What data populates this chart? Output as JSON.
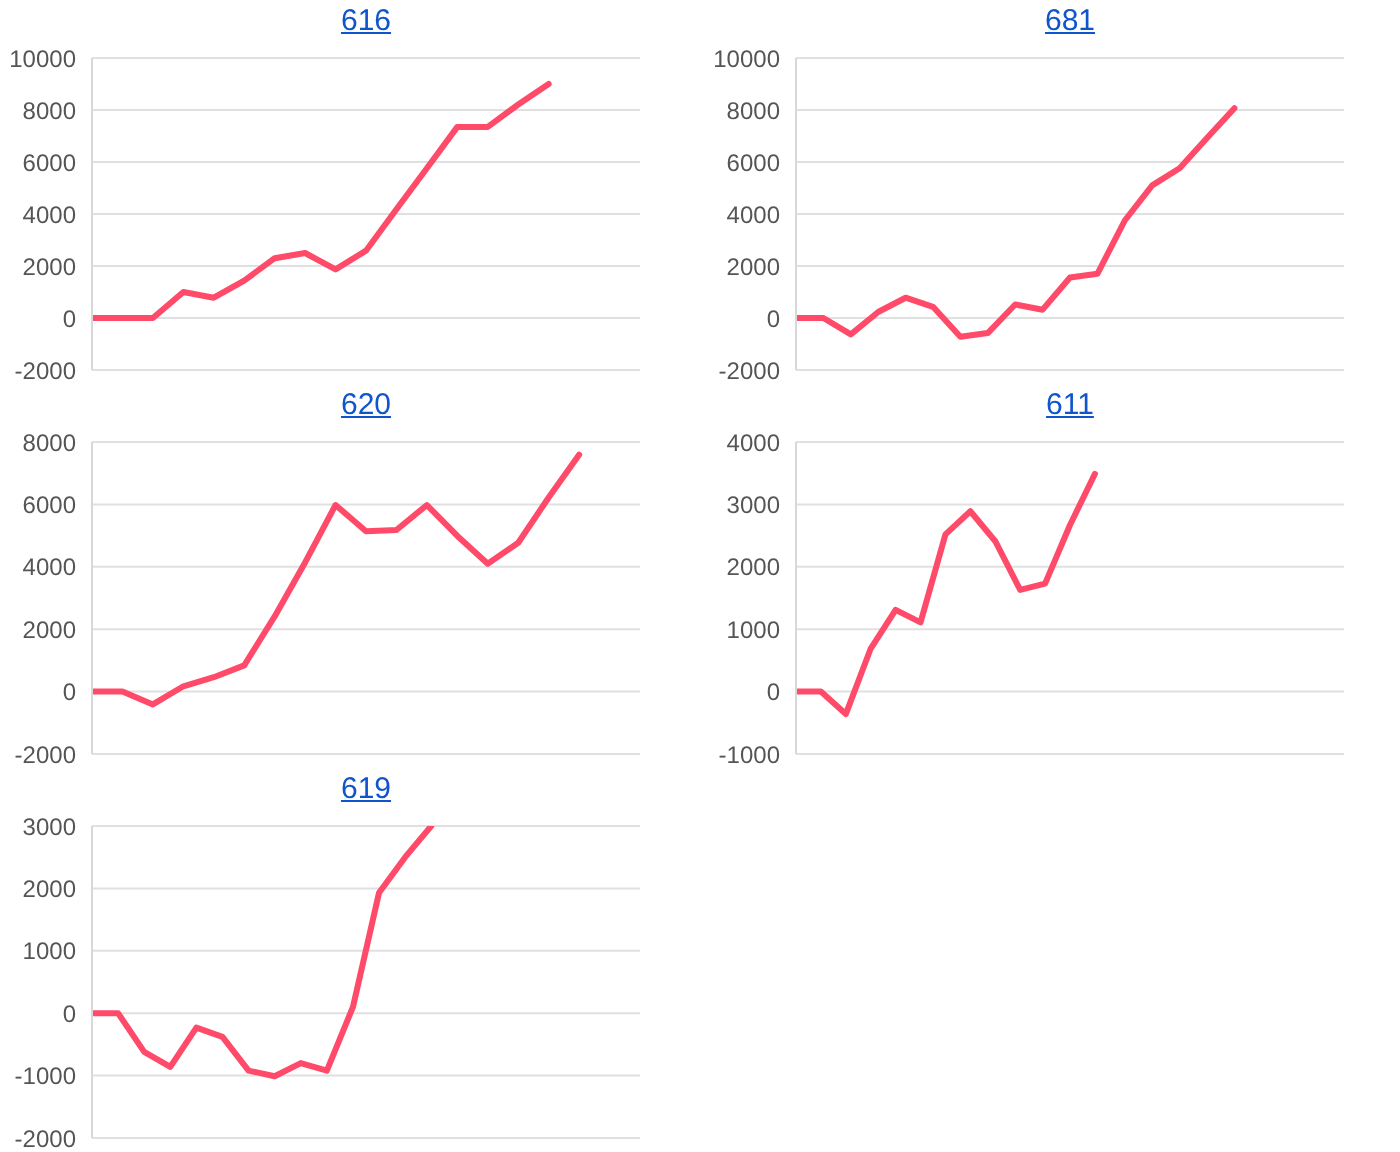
{
  "chart_data": [
    {
      "type": "line",
      "title": "616",
      "categories": [
        null,
        null,
        null,
        null,
        null,
        null,
        null,
        null,
        null,
        null,
        null,
        null,
        null,
        null,
        null,
        null,
        null,
        null,
        null
      ],
      "series": [
        {
          "color": "#ff4a6a",
          "values": [
            0,
            0,
            0,
            1000,
            780,
            1440,
            2300,
            2500,
            1870,
            2590,
            4180,
            5760,
            7350,
            7350,
            8210,
            9000,
            null,
            null,
            null
          ]
        }
      ],
      "ylim": [
        -2000,
        10000
      ],
      "yticks": [
        -2000,
        0,
        2000,
        4000,
        6000,
        8000,
        10000
      ],
      "grid": "y",
      "tick_labels": "y"
    },
    {
      "type": "line",
      "title": "681",
      "categories": [
        null,
        null,
        null,
        null,
        null,
        null,
        null,
        null,
        null,
        null,
        null,
        null,
        null,
        null,
        null,
        null,
        null,
        null,
        null,
        null,
        null
      ],
      "series": [
        {
          "color": "#ff4a6a",
          "values": [
            0,
            0,
            -630,
            230,
            780,
            430,
            -720,
            -580,
            520,
            320,
            1560,
            1700,
            3750,
            5100,
            5760,
            6920,
            8070,
            null,
            null,
            null,
            null
          ]
        }
      ],
      "ylim": [
        -2000,
        10000
      ],
      "yticks": [
        -2000,
        0,
        2000,
        4000,
        6000,
        8000,
        10000
      ],
      "grid": "y",
      "tick_labels": "y"
    },
    {
      "type": "line",
      "title": "620",
      "categories": [
        null,
        null,
        null,
        null,
        null,
        null,
        null,
        null,
        null,
        null,
        null,
        null,
        null,
        null,
        null,
        null,
        null,
        null,
        null
      ],
      "series": [
        {
          "color": "#ff4a6a",
          "values": [
            0,
            0,
            -410,
            170,
            460,
            840,
            2410,
            4140,
            5980,
            5140,
            5180,
            5980,
            4990,
            4100,
            4770,
            6220,
            7590,
            null,
            null
          ]
        }
      ],
      "ylim": [
        -2000,
        8000
      ],
      "yticks": [
        -2000,
        0,
        2000,
        4000,
        6000,
        8000
      ],
      "grid": "y",
      "tick_labels": "y"
    },
    {
      "type": "line",
      "title": "611",
      "categories": [
        null,
        null,
        null,
        null,
        null,
        null,
        null,
        null,
        null,
        null,
        null,
        null,
        null,
        null,
        null,
        null,
        null,
        null,
        null,
        null,
        null,
        null,
        null
      ],
      "series": [
        {
          "color": "#ff4a6a",
          "values": [
            0,
            0,
            -360,
            690,
            1310,
            1110,
            2520,
            2890,
            2410,
            1630,
            1730,
            2670,
            3490,
            null,
            null,
            null,
            null,
            null,
            null,
            null,
            null,
            null,
            null
          ]
        }
      ],
      "ylim": [
        -1000,
        4000
      ],
      "yticks": [
        -1000,
        0,
        1000,
        2000,
        3000,
        4000
      ],
      "grid": "y",
      "tick_labels": "y"
    },
    {
      "type": "line",
      "title": "619",
      "categories": [
        null,
        null,
        null,
        null,
        null,
        null,
        null,
        null,
        null,
        null,
        null,
        null,
        null,
        null,
        null,
        null,
        null,
        null,
        null,
        null,
        null,
        null
      ],
      "series": [
        {
          "color": "#ff4a6a",
          "values": [
            0,
            0,
            -620,
            -860,
            -230,
            -380,
            -920,
            -1010,
            -800,
            -920,
            100,
            1930,
            2500,
            3000,
            null,
            null,
            null,
            null,
            null,
            null,
            null,
            null
          ]
        }
      ],
      "ylim": [
        -2000,
        3000
      ],
      "yticks": [
        -2000,
        -1000,
        0,
        1000,
        2000,
        3000
      ],
      "grid": "y",
      "tick_labels": "y"
    }
  ]
}
